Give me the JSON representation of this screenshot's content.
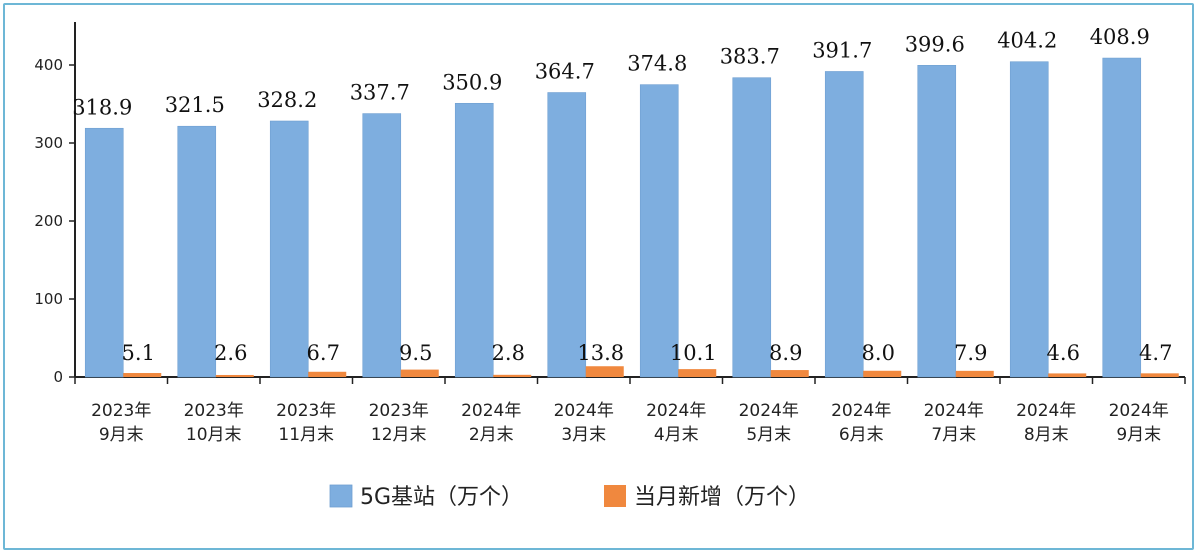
{
  "chart_data": {
    "type": "bar",
    "categories": [
      [
        "2023年",
        "9月末"
      ],
      [
        "2023年",
        "10月末"
      ],
      [
        "2023年",
        "11月末"
      ],
      [
        "2023年",
        "12月末"
      ],
      [
        "2024年",
        "2月末"
      ],
      [
        "2024年",
        "3月末"
      ],
      [
        "2024年",
        "4月末"
      ],
      [
        "2024年",
        "5月末"
      ],
      [
        "2024年",
        "6月末"
      ],
      [
        "2024年",
        "7月末"
      ],
      [
        "2024年",
        "8月末"
      ],
      [
        "2024年",
        "9月末"
      ]
    ],
    "series": [
      {
        "name": "5G基站（万个）",
        "values": [
          318.9,
          321.5,
          328.2,
          337.7,
          350.9,
          364.7,
          374.8,
          383.7,
          391.7,
          399.6,
          404.2,
          408.9
        ],
        "labels": [
          "318.9",
          "321.5",
          "328.2",
          "337.7",
          "350.9",
          "364.7",
          "374.8",
          "383.7",
          "391.7",
          "399.6",
          "404.2",
          "408.9"
        ],
        "color": "#7eaedf"
      },
      {
        "name": "当月新增（万个）",
        "values": [
          5.1,
          2.6,
          6.7,
          9.5,
          2.8,
          13.8,
          10.1,
          8.9,
          8.0,
          7.9,
          4.6,
          4.7
        ],
        "labels": [
          "5.1",
          "2.6",
          "6.7",
          "9.5",
          "2.8",
          "13.8",
          "10.1",
          "8.9",
          "8.0",
          "7.9",
          "4.6",
          "4.7"
        ],
        "color": "#f0883e"
      }
    ],
    "yticks": [
      "0",
      "100",
      "200",
      "300",
      "400"
    ],
    "ylim": [
      0,
      450
    ],
    "grid": false,
    "legend": "bottom",
    "title": "",
    "xlabel": "",
    "ylabel": ""
  }
}
